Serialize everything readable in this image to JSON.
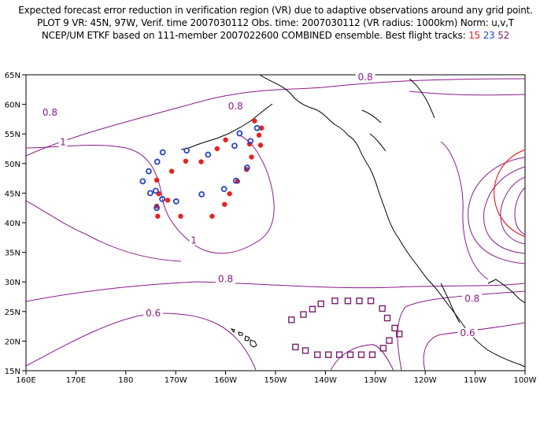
{
  "header": {
    "line1": "Expected forecast error reduction in verification region (VR) due to adaptive observations around any grid point.",
    "line2": "PLOT 9 VR: 45N, 97W, Verif. time 2007030112 Obs. time: 2007030112 (VR radius: 1000km) Norm: u,v,T",
    "line3_prefix": "NCEP/UM ETKF based on 111-member 2007022600 COMBINED ensemble.  Best flight tracks:",
    "track_15": "15",
    "track_23": "23",
    "track_52": "52"
  },
  "axes": {
    "x_ticks": [
      {
        "label": "160E",
        "lon": 160
      },
      {
        "label": "170E",
        "lon": 170
      },
      {
        "label": "180",
        "lon": 180
      },
      {
        "label": "170W",
        "lon": 190
      },
      {
        "label": "160W",
        "lon": 200
      },
      {
        "label": "150W",
        "lon": 210
      },
      {
        "label": "140W",
        "lon": 220
      },
      {
        "label": "130W",
        "lon": 230
      },
      {
        "label": "120W",
        "lon": 240
      },
      {
        "label": "110W",
        "lon": 250
      },
      {
        "label": "100W",
        "lon": 260
      }
    ],
    "y_ticks": [
      {
        "label": "15N",
        "lat": 15
      },
      {
        "label": "20N",
        "lat": 20
      },
      {
        "label": "25N",
        "lat": 25
      },
      {
        "label": "30N",
        "lat": 30
      },
      {
        "label": "35N",
        "lat": 35
      },
      {
        "label": "40N",
        "lat": 40
      },
      {
        "label": "45N",
        "lat": 45
      },
      {
        "label": "50N",
        "lat": 50
      },
      {
        "label": "55N",
        "lat": 55
      },
      {
        "label": "60N",
        "lat": 60
      },
      {
        "label": "65N",
        "lat": 65
      }
    ]
  },
  "contour_labels": [
    {
      "text": "0.8",
      "lon": 202.0,
      "lat": 59.3
    },
    {
      "text": "0.8",
      "lon": 164.8,
      "lat": 58.2
    },
    {
      "text": "0.8",
      "lon": 228.0,
      "lat": 64.2
    },
    {
      "text": "1",
      "lon": 167.4,
      "lat": 53.2
    },
    {
      "text": "1",
      "lon": 193.6,
      "lat": 36.6
    },
    {
      "text": "0.8",
      "lon": 200.0,
      "lat": 30.1
    },
    {
      "text": "0.6",
      "lon": 185.5,
      "lat": 24.3
    },
    {
      "text": "0.8",
      "lon": 249.4,
      "lat": 26.8
    },
    {
      "text": "0.6",
      "lon": 248.5,
      "lat": 21.0
    }
  ],
  "flight_tracks": [
    {
      "id": "15",
      "color": "#e8211d",
      "marker": "dot",
      "points": [
        [
          205.8,
          57.2
        ],
        [
          207.2,
          56.0
        ],
        [
          206.7,
          54.8
        ],
        [
          204.8,
          53.3
        ],
        [
          207.0,
          53.1
        ],
        [
          200.0,
          54.0
        ],
        [
          198.3,
          52.5
        ],
        [
          205.2,
          51.1
        ],
        [
          192.0,
          50.4
        ],
        [
          195.1,
          50.3
        ],
        [
          189.2,
          48.7
        ],
        [
          204.2,
          49.0
        ],
        [
          202.4,
          47.0
        ],
        [
          186.2,
          47.2
        ],
        [
          186.6,
          44.9
        ],
        [
          200.8,
          44.9
        ],
        [
          188.4,
          43.8
        ],
        [
          199.8,
          43.1
        ],
        [
          186.2,
          42.8
        ],
        [
          186.4,
          41.1
        ],
        [
          191.0,
          41.1
        ],
        [
          197.3,
          41.1
        ]
      ]
    },
    {
      "id": "23",
      "color": "#2b44c8",
      "marker": "ring",
      "points": [
        [
          206.3,
          56.0
        ],
        [
          202.8,
          55.1
        ],
        [
          205.0,
          53.8
        ],
        [
          201.8,
          53.0
        ],
        [
          192.2,
          52.2
        ],
        [
          187.4,
          51.9
        ],
        [
          196.5,
          51.5
        ],
        [
          186.3,
          50.3
        ],
        [
          184.6,
          48.7
        ],
        [
          204.3,
          49.3
        ],
        [
          183.4,
          47.0
        ],
        [
          202.1,
          47.1
        ],
        [
          199.7,
          45.7
        ],
        [
          186.0,
          45.4
        ],
        [
          184.9,
          45.0
        ],
        [
          195.2,
          44.8
        ],
        [
          187.3,
          44.0
        ],
        [
          190.1,
          43.6
        ],
        [
          186.2,
          42.5
        ]
      ]
    },
    {
      "id": "52",
      "color": "#7a1e6e",
      "marker": "square",
      "points": [
        [
          221.9,
          26.8
        ],
        [
          224.5,
          26.8
        ],
        [
          226.8,
          26.8
        ],
        [
          229.1,
          26.8
        ],
        [
          219.1,
          26.3
        ],
        [
          217.4,
          25.4
        ],
        [
          215.6,
          24.5
        ],
        [
          213.2,
          23.6
        ],
        [
          231.4,
          25.5
        ],
        [
          232.4,
          23.9
        ],
        [
          234.8,
          21.2
        ],
        [
          232.8,
          20.1
        ],
        [
          233.9,
          22.2
        ],
        [
          214.0,
          19.0
        ],
        [
          216.0,
          18.4
        ],
        [
          218.4,
          17.7
        ],
        [
          220.6,
          17.7
        ],
        [
          222.8,
          17.7
        ],
        [
          225.0,
          17.7
        ],
        [
          227.2,
          17.7
        ],
        [
          229.4,
          17.7
        ],
        [
          231.6,
          18.8
        ]
      ]
    }
  ],
  "colors": {
    "contour": "#8b1a8b",
    "vr_circle": "#e8211d",
    "coast": "#000000"
  },
  "vr_circle": {
    "center_lon": 263,
    "center_lat": 45,
    "radius_deg": 9.2
  }
}
